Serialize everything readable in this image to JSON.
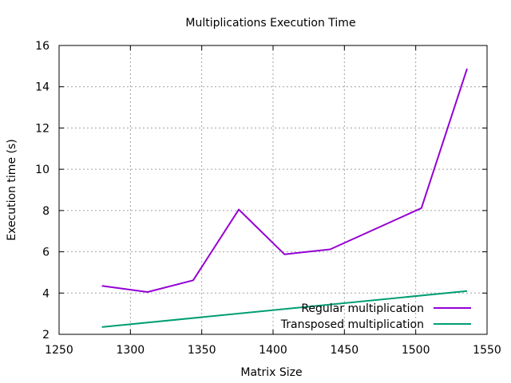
{
  "chart_data": {
    "type": "line",
    "title": "Multiplications Execution Time",
    "xlabel": "Matrix Size",
    "ylabel": "Execution time (s)",
    "xlim": [
      1250,
      1550
    ],
    "ylim": [
      2,
      16
    ],
    "xticks": [
      1250,
      1300,
      1350,
      1400,
      1450,
      1500,
      1550
    ],
    "yticks": [
      2,
      4,
      6,
      8,
      10,
      12,
      14,
      16
    ],
    "grid": true,
    "legend_position": "bottom-right",
    "series": [
      {
        "name": "Regular multiplication",
        "color": "#9400d3",
        "x": [
          1280,
          1312,
          1344,
          1376,
          1408,
          1440,
          1504,
          1536
        ],
        "y": [
          4.35,
          4.05,
          4.62,
          8.05,
          5.88,
          6.12,
          8.12,
          14.88
        ]
      },
      {
        "name": "Transposed multiplication",
        "color": "#009e73",
        "x": [
          1280,
          1536
        ],
        "y": [
          2.35,
          4.1
        ]
      }
    ]
  }
}
